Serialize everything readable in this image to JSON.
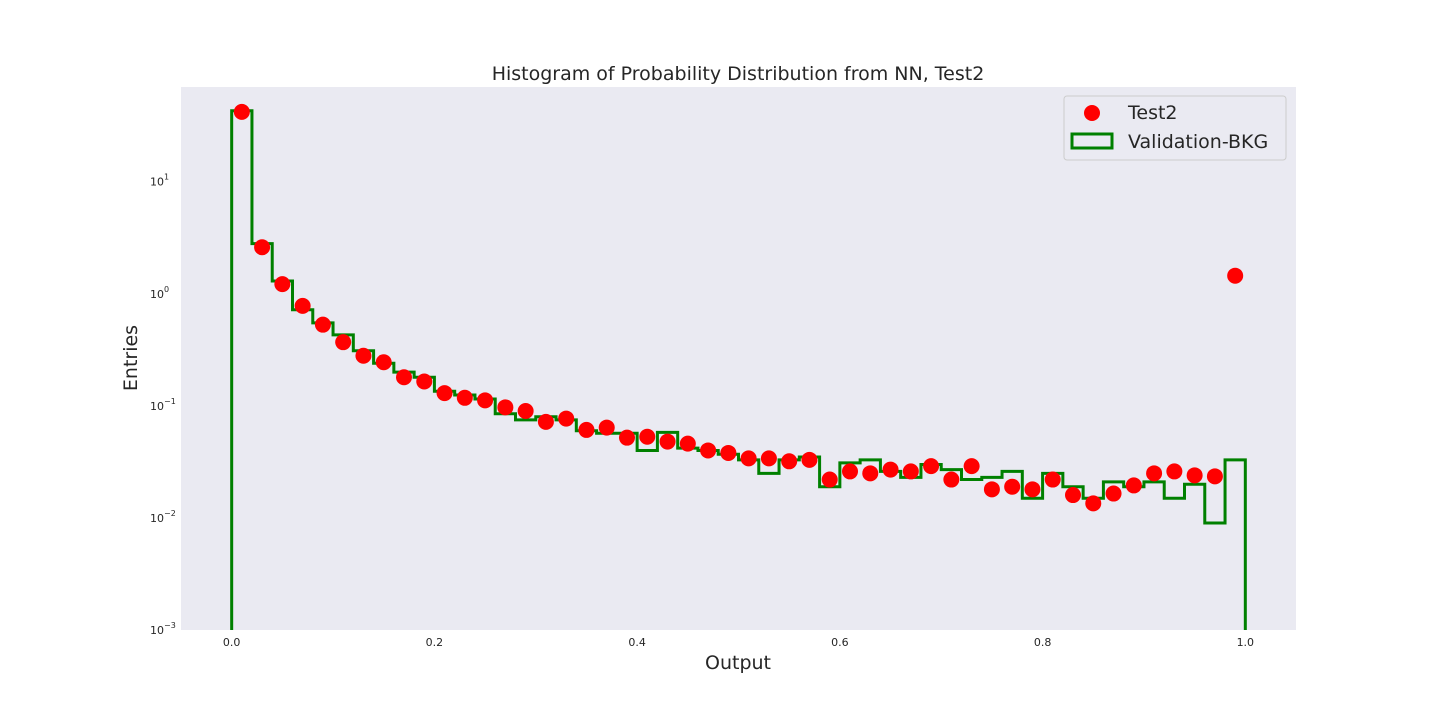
{
  "chart_data": {
    "type": "histogram",
    "title": "Histogram of Probability Distribution from NN, Test2",
    "xlabel": "Output",
    "ylabel": "Entries",
    "xlim": [
      -0.05,
      1.05
    ],
    "ylim": [
      0.001,
      70
    ],
    "yscale": "log",
    "grid": false,
    "legend_position": "top-right",
    "x_ticks": [
      {
        "value": 0.0,
        "label": "0.0"
      },
      {
        "value": 0.2,
        "label": "0.2"
      },
      {
        "value": 0.4,
        "label": "0.4"
      },
      {
        "value": 0.6,
        "label": "0.6"
      },
      {
        "value": 0.8,
        "label": "0.8"
      },
      {
        "value": 1.0,
        "label": "1.0"
      }
    ],
    "y_ticks": [
      {
        "value": 0.001,
        "base": "10",
        "exp": "−3"
      },
      {
        "value": 0.01,
        "base": "10",
        "exp": "−2"
      },
      {
        "value": 0.1,
        "base": "10",
        "exp": "−1"
      },
      {
        "value": 1,
        "base": "10",
        "exp": "0"
      },
      {
        "value": 10,
        "base": "10",
        "exp": "1"
      }
    ],
    "bin_edges": [
      0.0,
      0.02,
      0.04,
      0.06,
      0.08,
      0.1,
      0.12,
      0.14,
      0.16,
      0.18,
      0.2,
      0.22,
      0.24,
      0.26,
      0.28,
      0.3,
      0.32,
      0.34,
      0.36,
      0.38,
      0.4,
      0.42,
      0.44,
      0.46,
      0.48,
      0.5,
      0.52,
      0.54,
      0.56,
      0.58,
      0.6,
      0.62,
      0.64,
      0.66,
      0.68,
      0.7,
      0.72,
      0.74,
      0.76,
      0.78,
      0.8,
      0.82,
      0.84,
      0.86,
      0.88,
      0.9,
      0.92,
      0.94,
      0.96,
      0.98,
      1.0
    ],
    "series": [
      {
        "name": "Test2",
        "kind": "points",
        "color": "#ff0000",
        "x": [
          0.01,
          0.03,
          0.05,
          0.07,
          0.09,
          0.11,
          0.13,
          0.15,
          0.17,
          0.19,
          0.21,
          0.23,
          0.25,
          0.27,
          0.29,
          0.31,
          0.33,
          0.35,
          0.37,
          0.39,
          0.41,
          0.43,
          0.45,
          0.47,
          0.49,
          0.51,
          0.53,
          0.55,
          0.57,
          0.59,
          0.61,
          0.63,
          0.65,
          0.67,
          0.69,
          0.71,
          0.73,
          0.75,
          0.77,
          0.79,
          0.81,
          0.83,
          0.85,
          0.87,
          0.89,
          0.91,
          0.93,
          0.95,
          0.97,
          0.99
        ],
        "values": [
          42,
          2.6,
          1.22,
          0.78,
          0.53,
          0.37,
          0.28,
          0.245,
          0.18,
          0.165,
          0.13,
          0.118,
          0.112,
          0.097,
          0.09,
          0.072,
          0.077,
          0.061,
          0.064,
          0.052,
          0.053,
          0.048,
          0.046,
          0.04,
          0.038,
          0.034,
          0.034,
          0.032,
          0.033,
          0.022,
          0.026,
          0.025,
          0.027,
          0.026,
          0.029,
          0.022,
          0.029,
          0.018,
          0.019,
          0.018,
          0.022,
          0.016,
          0.0135,
          0.0165,
          0.0195,
          0.025,
          0.026,
          0.024,
          0.0235,
          1.45
        ]
      },
      {
        "name": "Validation-BKG",
        "kind": "step",
        "color": "#008000",
        "values": [
          43,
          2.8,
          1.3,
          0.72,
          0.55,
          0.43,
          0.31,
          0.24,
          0.2,
          0.18,
          0.135,
          0.125,
          0.115,
          0.085,
          0.075,
          0.08,
          0.075,
          0.06,
          0.057,
          0.057,
          0.04,
          0.058,
          0.042,
          0.04,
          0.037,
          0.033,
          0.025,
          0.033,
          0.035,
          0.019,
          0.031,
          0.033,
          0.026,
          0.023,
          0.03,
          0.027,
          0.022,
          0.023,
          0.026,
          0.015,
          0.025,
          0.019,
          0.015,
          0.021,
          0.019,
          0.021,
          0.015,
          0.02,
          0.009,
          0.033
        ]
      }
    ]
  }
}
